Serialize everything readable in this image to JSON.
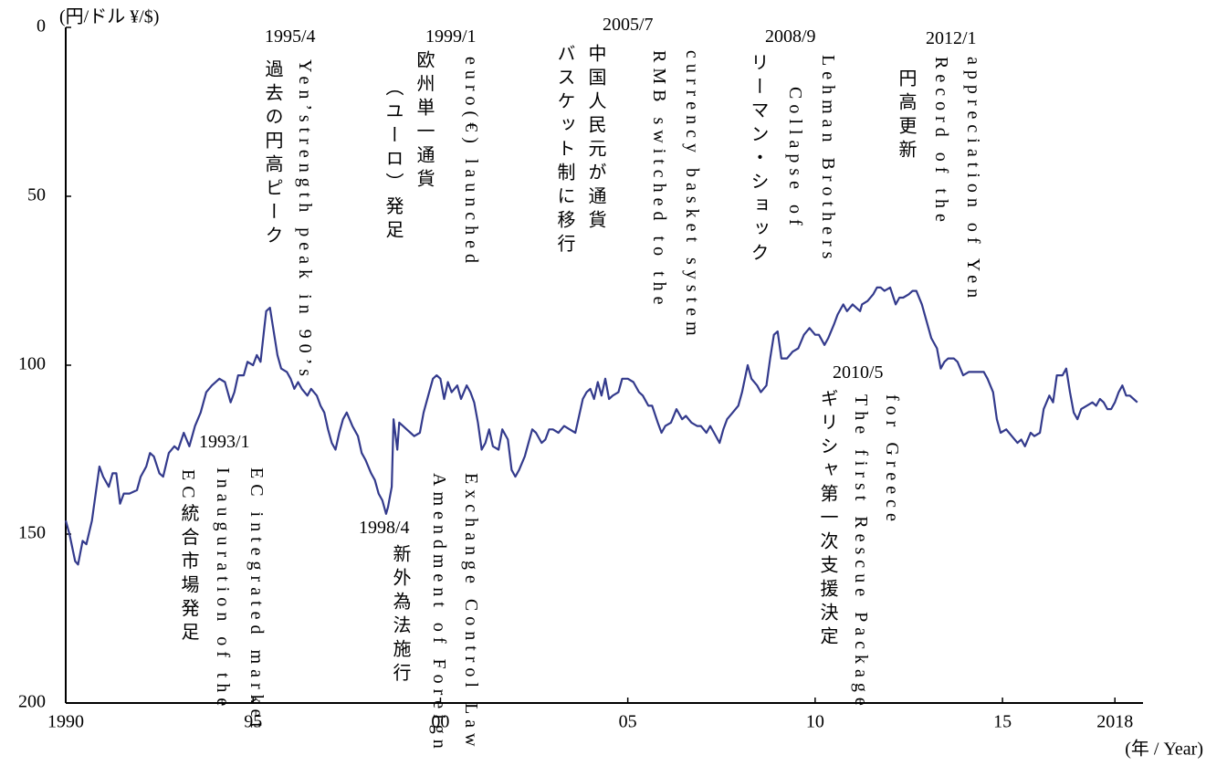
{
  "chart_data": {
    "type": "line",
    "unit_label": "(円/ドル ¥/$)",
    "x_axis_label": "(年 / Year)",
    "color": "#333a8c",
    "yaxis_inverted": true,
    "ylim": [
      0,
      200
    ],
    "yticks": [
      0,
      50,
      100,
      150,
      200
    ],
    "xlim": [
      1990,
      2018.75
    ],
    "xticks": [
      1990,
      {
        "value": 1995,
        "label": "95"
      },
      {
        "value": 2000,
        "label": "00"
      },
      {
        "value": 2005,
        "label": "05"
      },
      {
        "value": 2010,
        "label": "10"
      },
      {
        "value": 2015,
        "label": "15"
      },
      2018
    ],
    "x": [
      1990.0,
      1990.1,
      1990.25,
      1990.33,
      1990.45,
      1990.55,
      1990.7,
      1990.8,
      1990.9,
      1991.0,
      1991.15,
      1991.25,
      1991.35,
      1991.45,
      1991.55,
      1991.7,
      1991.9,
      1992.0,
      1992.15,
      1992.25,
      1992.35,
      1992.5,
      1992.6,
      1992.75,
      1992.9,
      1993.0,
      1993.15,
      1993.3,
      1993.45,
      1993.6,
      1993.75,
      1993.9,
      1994.1,
      1994.25,
      1994.4,
      1994.5,
      1994.6,
      1994.75,
      1994.85,
      1995.0,
      1995.1,
      1995.2,
      1995.3,
      1995.35,
      1995.45,
      1995.55,
      1995.65,
      1995.75,
      1995.9,
      1996.0,
      1996.1,
      1996.2,
      1996.3,
      1996.45,
      1996.55,
      1996.7,
      1996.8,
      1996.9,
      1997.0,
      1997.1,
      1997.2,
      1997.3,
      1997.4,
      1997.5,
      1997.65,
      1997.8,
      1997.9,
      1998.0,
      1998.15,
      1998.25,
      1998.35,
      1998.45,
      1998.55,
      1998.6,
      1998.7,
      1998.75,
      1998.85,
      1998.9,
      1999.0,
      1999.1,
      1999.2,
      1999.3,
      1999.45,
      1999.55,
      1999.7,
      1999.8,
      1999.9,
      2000.0,
      2000.1,
      2000.2,
      2000.3,
      2000.45,
      2000.55,
      2000.7,
      2000.8,
      2000.9,
      2001.0,
      2001.1,
      2001.2,
      2001.3,
      2001.4,
      2001.55,
      2001.65,
      2001.8,
      2001.9,
      2002.0,
      2002.1,
      2002.25,
      2002.35,
      2002.45,
      2002.55,
      2002.7,
      2002.8,
      2002.9,
      2003.0,
      2003.15,
      2003.3,
      2003.45,
      2003.6,
      2003.7,
      2003.8,
      2003.9,
      2004.0,
      2004.1,
      2004.2,
      2004.3,
      2004.4,
      2004.5,
      2004.6,
      2004.75,
      2004.85,
      2005.0,
      2005.15,
      2005.3,
      2005.4,
      2005.55,
      2005.65,
      2005.8,
      2005.9,
      2006.0,
      2006.15,
      2006.3,
      2006.45,
      2006.55,
      2006.7,
      2006.85,
      2006.95,
      2007.1,
      2007.2,
      2007.3,
      2007.45,
      2007.55,
      2007.65,
      2007.8,
      2007.95,
      2008.05,
      2008.2,
      2008.3,
      2008.45,
      2008.55,
      2008.7,
      2008.8,
      2008.9,
      2009.0,
      2009.1,
      2009.25,
      2009.4,
      2009.55,
      2009.7,
      2009.85,
      2010.0,
      2010.1,
      2010.25,
      2010.35,
      2010.5,
      2010.6,
      2010.75,
      2010.85,
      2011.0,
      2011.2,
      2011.25,
      2011.4,
      2011.55,
      2011.65,
      2011.75,
      2011.85,
      2012.0,
      2012.15,
      2012.25,
      2012.35,
      2012.5,
      2012.6,
      2012.7,
      2012.85,
      2012.95,
      2013.1,
      2013.25,
      2013.35,
      2013.45,
      2013.55,
      2013.7,
      2013.8,
      2013.95,
      2014.1,
      2014.25,
      2014.35,
      2014.5,
      2014.6,
      2014.75,
      2014.85,
      2014.95,
      2015.1,
      2015.25,
      2015.4,
      2015.5,
      2015.6,
      2015.75,
      2015.85,
      2016.0,
      2016.1,
      2016.25,
      2016.35,
      2016.45,
      2016.6,
      2016.7,
      2016.8,
      2016.9,
      2017.0,
      2017.1,
      2017.25,
      2017.4,
      2017.5,
      2017.6,
      2017.7,
      2017.8,
      2017.9,
      2018.0,
      2018.1,
      2018.2,
      2018.3,
      2018.4,
      2018.5,
      2018.6
    ],
    "values": [
      146,
      150,
      158,
      159,
      152,
      153,
      146,
      138,
      130,
      133,
      136,
      132,
      132,
      141,
      138,
      138,
      137,
      133,
      130,
      126,
      127,
      132,
      133,
      126,
      124,
      125,
      120,
      124,
      118,
      114,
      108,
      106,
      104,
      105,
      111,
      108,
      103,
      103,
      99,
      100,
      97,
      99,
      89,
      84,
      83,
      90,
      97,
      101,
      102,
      104,
      107,
      105,
      107,
      109,
      107,
      109,
      112,
      114,
      119,
      123,
      125,
      120,
      116,
      114,
      118,
      121,
      126,
      128,
      132,
      134,
      138,
      140,
      144,
      142,
      136,
      116,
      125,
      117,
      118,
      119,
      120,
      121,
      120,
      114,
      108,
      104,
      103,
      104,
      110,
      105,
      108,
      106,
      110,
      106,
      108,
      111,
      117,
      125,
      123,
      119,
      124,
      125,
      119,
      122,
      131,
      133,
      131,
      127,
      123,
      119,
      120,
      123,
      122,
      119,
      119,
      120,
      118,
      119,
      120,
      115,
      110,
      108,
      107,
      110,
      105,
      109,
      104,
      110,
      109,
      108,
      104,
      104,
      105,
      108,
      109,
      112,
      112,
      117,
      120,
      118,
      117,
      113,
      116,
      115,
      117,
      118,
      118,
      120,
      118,
      120,
      123,
      119,
      116,
      114,
      112,
      108,
      100,
      104,
      106,
      108,
      106,
      98,
      91,
      90,
      98,
      98,
      96,
      95,
      91,
      89,
      91,
      91,
      94,
      92,
      88,
      85,
      82,
      84,
      82,
      84,
      82,
      81,
      79,
      77,
      77,
      78,
      77,
      82,
      80,
      80,
      79,
      78,
      78,
      82,
      86,
      92,
      95,
      101,
      99,
      98,
      98,
      99,
      103,
      102,
      102,
      102,
      102,
      104,
      108,
      116,
      120,
      119,
      121,
      123,
      122,
      124,
      120,
      121,
      120,
      113,
      109,
      111,
      103,
      103,
      101,
      108,
      114,
      116,
      113,
      112,
      111,
      112,
      110,
      111,
      113,
      113,
      111,
      108,
      106,
      109,
      109,
      110,
      111
    ],
    "annotations": [
      {
        "date": "1995/4",
        "lines": [
          "過去の円高ピーク",
          "Yen’strength  peak in 90’s"
        ]
      },
      {
        "date": "1999/1",
        "lines": [
          "欧州単一通貨",
          "（ユーロ）発足",
          "euro(€) launched"
        ]
      },
      {
        "date": "2005/7",
        "lines": [
          "中国人民元が通貨",
          "バスケット制に移行",
          "RMB switched to the",
          "currency basket system"
        ]
      },
      {
        "date": "2008/9",
        "lines": [
          "リーマン・ショック",
          "Collapse of",
          "Lehman Brothers"
        ]
      },
      {
        "date": "2012/1",
        "lines": [
          "円高更新",
          "Record of the",
          "appreciation of Yen"
        ]
      },
      {
        "date": "1993/1",
        "lines": [
          "EC統合市場発足",
          "Inauguration of the",
          "EC integrated market"
        ]
      },
      {
        "date": "1998/4",
        "lines": [
          "新外為法施行",
          "Amendment of Foreign",
          "Exchange Control Law"
        ]
      },
      {
        "date": "2010/5",
        "lines": [
          "ギリシャ第一次支援決定",
          "The first Rescue Package",
          "for Greece"
        ]
      }
    ]
  }
}
